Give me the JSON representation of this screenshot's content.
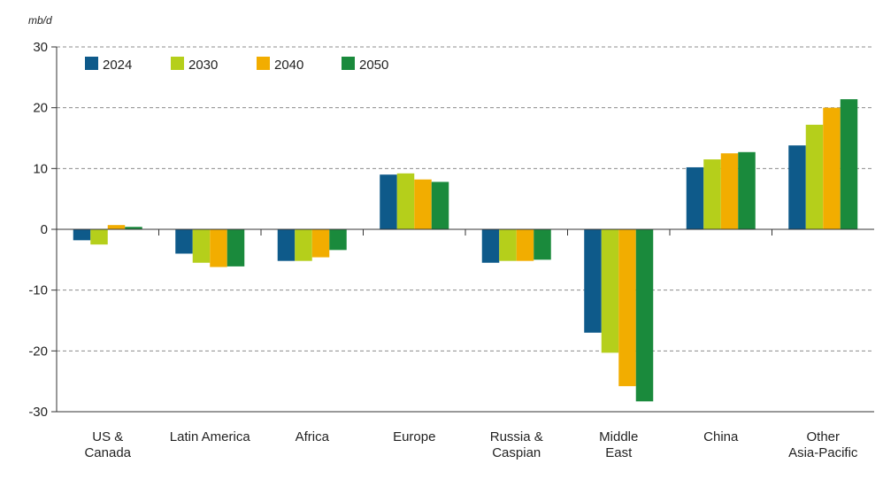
{
  "chart_data": {
    "type": "bar",
    "title": "",
    "ylabel": "mb/d",
    "xlabel": "",
    "ylim": [
      -30,
      30
    ],
    "yticks": [
      30,
      20,
      10,
      0,
      -10,
      -20,
      -30
    ],
    "grid": "horizontal dashed",
    "legend_position": "top-left",
    "categories": [
      [
        "US &",
        "Canada"
      ],
      [
        "Latin America"
      ],
      [
        "Africa"
      ],
      [
        "Europe"
      ],
      [
        "Russia &",
        "Caspian"
      ],
      [
        "Middle",
        "East"
      ],
      [
        "China"
      ],
      [
        "Other",
        "Asia-Pacific"
      ]
    ],
    "series": [
      {
        "name": "2024",
        "color": "#0e5a8a",
        "values": [
          -1.8,
          -4.0,
          -5.2,
          9.0,
          -5.5,
          -17.0,
          10.2,
          13.8
        ]
      },
      {
        "name": "2030",
        "color": "#b5cf1b",
        "values": [
          -2.5,
          -5.5,
          -5.2,
          9.2,
          -5.2,
          -20.3,
          11.5,
          17.2
        ]
      },
      {
        "name": "2040",
        "color": "#f2ad00",
        "values": [
          0.7,
          -6.2,
          -4.6,
          8.2,
          -5.2,
          -25.8,
          12.5,
          20.0
        ]
      },
      {
        "name": "2050",
        "color": "#1a8a3c",
        "values": [
          0.4,
          -6.1,
          -3.4,
          7.8,
          -5.0,
          -28.3,
          12.7,
          21.4
        ]
      }
    ]
  }
}
